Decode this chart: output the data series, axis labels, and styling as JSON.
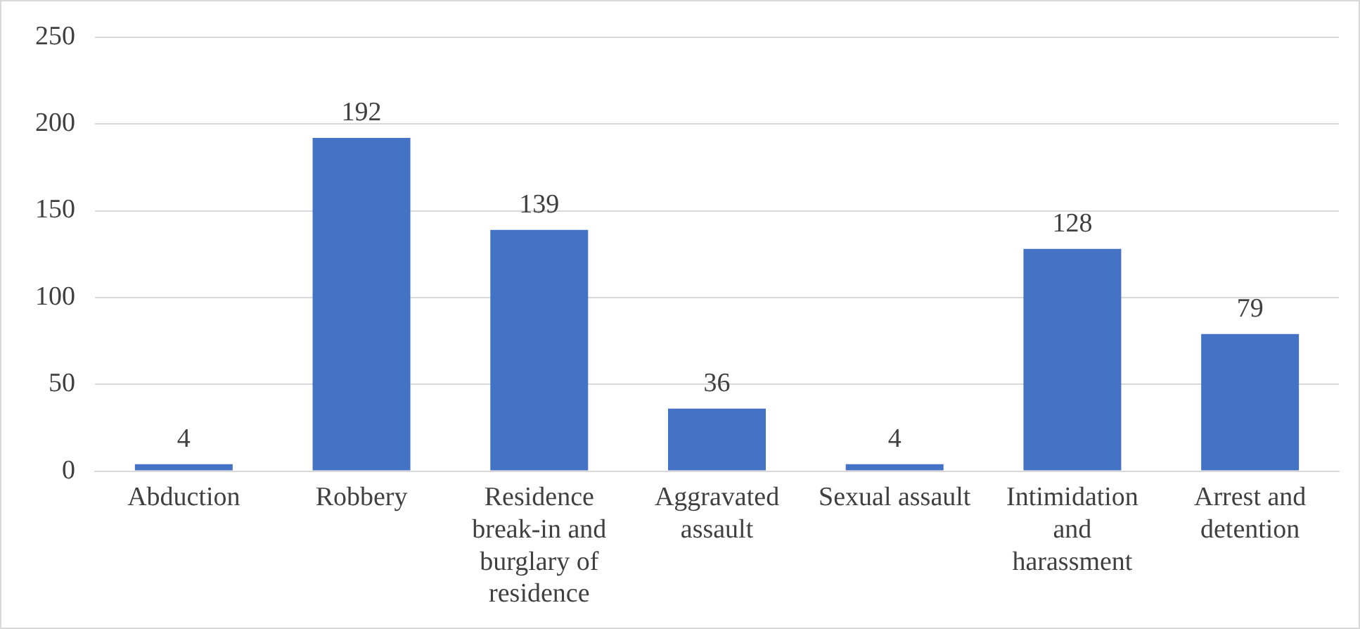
{
  "chart_data": {
    "type": "bar",
    "categories": [
      "Abduction",
      "Robbery",
      "Residence break-in and burglary of residence",
      "Aggravated assault",
      "Sexual assault",
      "Intimidation and harassment",
      "Arrest and detention"
    ],
    "values": [
      4,
      192,
      139,
      36,
      4,
      128,
      79
    ],
    "color": "#4472c4",
    "ylim": [
      0,
      250
    ],
    "yticks": [
      0,
      50,
      100,
      150,
      200,
      250
    ],
    "grid": "y",
    "data_labels": true
  }
}
